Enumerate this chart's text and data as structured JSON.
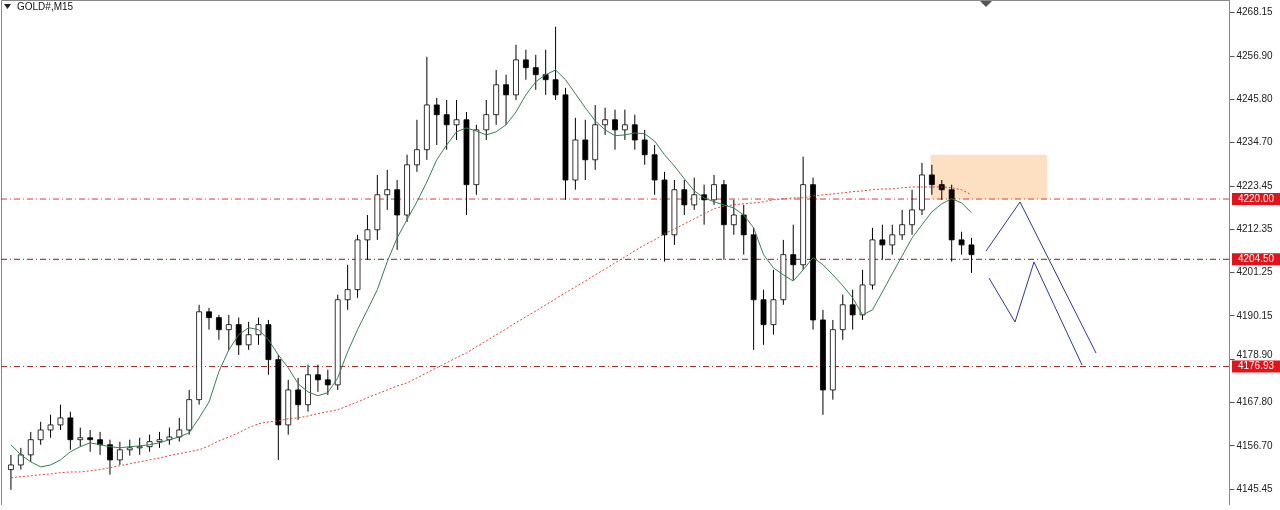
{
  "chart_data": {
    "type": "candlestick",
    "title": "GOLD#,M15",
    "color": "#000000",
    "categories": [
      null,
      null,
      null,
      null,
      null,
      null,
      null,
      null,
      null,
      null,
      null,
      null,
      null,
      null,
      null,
      null,
      null,
      null,
      null,
      null,
      null,
      null,
      null,
      null,
      null,
      null,
      null,
      null,
      null,
      null,
      null,
      null,
      null,
      null,
      null,
      null,
      null,
      null,
      null,
      null,
      null,
      null,
      null,
      null,
      null,
      null,
      null,
      null,
      null,
      null,
      null,
      null,
      null,
      null,
      null,
      null,
      null,
      null,
      null,
      null,
      null,
      null,
      null,
      null,
      null,
      null,
      null,
      null,
      null,
      null,
      null,
      null,
      null,
      null,
      null,
      null,
      null,
      null,
      null,
      null,
      null,
      null,
      null,
      null,
      null,
      null,
      null,
      null,
      null,
      null,
      null,
      null,
      null,
      null,
      null,
      null,
      null,
      null,
      null,
      null,
      null,
      null,
      null,
      null,
      null,
      null,
      null,
      null,
      null,
      null,
      null,
      null,
      null,
      null,
      null,
      null,
      null,
      null,
      null,
      null,
      null,
      null,
      null
    ],
    "ohlc": [
      [
        4150.4,
        4154.2,
        4145.2,
        4151.6
      ],
      [
        4151.6,
        4156.0,
        4150.4,
        4154.2
      ],
      [
        4154.2,
        4160.1,
        4152.4,
        4158.1
      ],
      [
        4158.1,
        4162.7,
        4156.8,
        4160.6
      ],
      [
        4160.6,
        4164.5,
        4158.6,
        4161.9
      ],
      [
        4161.9,
        4167.1,
        4160.6,
        4163.7
      ],
      [
        4163.7,
        4165.3,
        4155.5,
        4158.1
      ],
      [
        4158.1,
        4161.2,
        4156.3,
        4158.6
      ],
      [
        4158.6,
        4160.6,
        4155.0,
        4158.1
      ],
      [
        4158.1,
        4160.1,
        4154.2,
        4156.8
      ],
      [
        4156.8,
        4158.1,
        4149.1,
        4152.9
      ],
      [
        4152.9,
        4157.6,
        4151.6,
        4155.5
      ],
      [
        4155.5,
        4158.1,
        4154.0,
        4156.0
      ],
      [
        4156.0,
        4158.6,
        4154.2,
        4156.3
      ],
      [
        4156.3,
        4159.4,
        4155.0,
        4157.6
      ],
      [
        4157.6,
        4160.1,
        4156.0,
        4158.1
      ],
      [
        4158.1,
        4161.2,
        4156.8,
        4158.8
      ],
      [
        4158.8,
        4163.7,
        4157.6,
        4160.6
      ],
      [
        4160.6,
        4170.9,
        4159.4,
        4168.4
      ],
      [
        4168.4,
        4192.8,
        4167.1,
        4191.0
      ],
      [
        4191.0,
        4192.0,
        4186.4,
        4189.5
      ],
      [
        4189.5,
        4190.2,
        4183.8,
        4186.4
      ],
      [
        4186.4,
        4190.2,
        4181.2,
        4187.7
      ],
      [
        4187.7,
        4189.5,
        4179.9,
        4182.5
      ],
      [
        4182.5,
        4188.4,
        4181.2,
        4185.1
      ],
      [
        4185.1,
        4189.5,
        4182.5,
        4187.7
      ],
      [
        4187.7,
        4188.9,
        4174.8,
        4178.7
      ],
      [
        4178.7,
        4179.9,
        4152.9,
        4161.9
      ],
      [
        4161.9,
        4173.5,
        4159.4,
        4170.9
      ],
      [
        4170.9,
        4174.0,
        4163.2,
        4167.1
      ],
      [
        4167.1,
        4177.4,
        4165.3,
        4174.8
      ],
      [
        4174.8,
        4177.4,
        4170.4,
        4173.5
      ],
      [
        4173.5,
        4176.1,
        4169.6,
        4172.2
      ],
      [
        4172.2,
        4195.4,
        4170.9,
        4194.1
      ],
      [
        4194.1,
        4203.1,
        4191.5,
        4196.7
      ],
      [
        4196.7,
        4210.8,
        4194.6,
        4209.5
      ],
      [
        4209.5,
        4215.9,
        4204.4,
        4212.1
      ],
      [
        4212.1,
        4226.2,
        4209.5,
        4221.1
      ],
      [
        4221.1,
        4227.5,
        4217.2,
        4222.4
      ],
      [
        4222.4,
        4224.9,
        4206.9,
        4215.9
      ],
      [
        4215.9,
        4231.4,
        4214.1,
        4228.8
      ],
      [
        4228.8,
        4240.4,
        4227.0,
        4232.7
      ],
      [
        4232.7,
        4256.6,
        4230.1,
        4244.2
      ],
      [
        4244.2,
        4246.0,
        4233.9,
        4241.7
      ],
      [
        4241.7,
        4245.5,
        4232.7,
        4239.1
      ],
      [
        4239.1,
        4245.5,
        4235.2,
        4240.4
      ],
      [
        4240.4,
        4242.4,
        4215.9,
        4223.7
      ],
      [
        4223.7,
        4239.1,
        4221.1,
        4237.8
      ],
      [
        4237.8,
        4245.5,
        4235.2,
        4241.7
      ],
      [
        4241.7,
        4253.2,
        4239.1,
        4249.4
      ],
      [
        4249.4,
        4252.0,
        4239.1,
        4246.8
      ],
      [
        4246.8,
        4259.7,
        4245.5,
        4255.8
      ],
      [
        4255.8,
        4258.4,
        4250.7,
        4253.8
      ],
      [
        4253.8,
        4257.1,
        4248.1,
        4252.0
      ],
      [
        4252.0,
        4258.4,
        4246.8,
        4250.7
      ],
      [
        4250.7,
        4264.3,
        4245.5,
        4246.8
      ],
      [
        4246.8,
        4248.6,
        4219.8,
        4224.9
      ],
      [
        4224.9,
        4240.9,
        4222.4,
        4235.2
      ],
      [
        4235.2,
        4240.4,
        4224.9,
        4230.1
      ],
      [
        4230.1,
        4244.2,
        4227.5,
        4239.1
      ],
      [
        4239.1,
        4243.5,
        4236.5,
        4240.4
      ],
      [
        4240.4,
        4243.0,
        4232.7,
        4237.8
      ],
      [
        4237.8,
        4243.0,
        4235.2,
        4239.1
      ],
      [
        4239.1,
        4241.7,
        4232.7,
        4235.2
      ],
      [
        4235.2,
        4237.8,
        4228.8,
        4231.4
      ],
      [
        4231.4,
        4233.9,
        4221.1,
        4224.9
      ],
      [
        4224.9,
        4227.0,
        4203.9,
        4210.8
      ],
      [
        4210.8,
        4224.9,
        4208.2,
        4222.4
      ],
      [
        4222.4,
        4224.9,
        4215.9,
        4218.5
      ],
      [
        4218.5,
        4225.5,
        4217.2,
        4221.1
      ],
      [
        4221.1,
        4223.7,
        4213.4,
        4219.8
      ],
      [
        4219.8,
        4226.2,
        4218.5,
        4223.7
      ],
      [
        4223.7,
        4224.9,
        4204.4,
        4213.4
      ],
      [
        4213.4,
        4219.8,
        4210.8,
        4215.9
      ],
      [
        4215.9,
        4218.5,
        4205.7,
        4210.8
      ],
      [
        4210.8,
        4212.6,
        4181.2,
        4194.1
      ],
      [
        4194.1,
        4196.7,
        4182.5,
        4187.7
      ],
      [
        4187.7,
        4201.8,
        4185.1,
        4194.1
      ],
      [
        4194.1,
        4209.5,
        4192.8,
        4205.7
      ],
      [
        4205.7,
        4213.4,
        4199.2,
        4203.1
      ],
      [
        4203.1,
        4230.9,
        4201.8,
        4223.7
      ],
      [
        4223.7,
        4225.5,
        4186.4,
        4188.9
      ],
      [
        4188.9,
        4191.5,
        4164.5,
        4170.9
      ],
      [
        4170.9,
        4188.9,
        4168.4,
        4186.4
      ],
      [
        4186.4,
        4195.4,
        4183.8,
        4192.8
      ],
      [
        4192.8,
        4196.7,
        4186.4,
        4190.2
      ],
      [
        4190.2,
        4201.8,
        4188.9,
        4197.9
      ],
      [
        4197.9,
        4212.6,
        4196.7,
        4209.5
      ],
      [
        4209.5,
        4213.4,
        4204.4,
        4208.2
      ],
      [
        4208.2,
        4213.4,
        4205.7,
        4210.8
      ],
      [
        4210.8,
        4217.2,
        4209.5,
        4213.4
      ],
      [
        4213.4,
        4222.4,
        4210.8,
        4217.2
      ],
      [
        4217.2,
        4229.3,
        4215.9,
        4226.2
      ],
      [
        4226.2,
        4228.8,
        4221.1,
        4223.7
      ],
      [
        4223.7,
        4224.9,
        4219.8,
        4222.4
      ],
      [
        4222.4,
        4223.7,
        4203.9,
        4209.5
      ],
      [
        4209.5,
        4211.6,
        4205.7,
        4208.2
      ],
      [
        4208.2,
        4210.0,
        4201.0,
        4205.7
      ],
      null,
      null,
      null,
      null,
      null,
      null,
      null,
      null,
      null,
      null,
      null,
      null,
      null,
      null,
      null,
      null,
      null,
      null,
      null,
      null,
      null,
      null,
      null,
      null,
      null
    ],
    "series": [
      {
        "type": "line",
        "color": "#3a7d55",
        "line_style": "solid",
        "values": [
          4156.8,
          4154.2,
          4152.4,
          4151.1,
          4151.6,
          4152.9,
          4155.0,
          4156.3,
          4157.3,
          4156.8,
          4156.3,
          4156.0,
          4156.3,
          4156.5,
          4156.8,
          4157.3,
          4158.1,
          4158.8,
          4159.9,
          4163.7,
          4167.8,
          4175.6,
          4181.2,
          4185.1,
          4186.9,
          4186.4,
          4183.8,
          4179.9,
          4176.6,
          4172.5,
          4170.4,
          4169.4,
          4170.2,
          4174.0,
          4180.7,
          4186.4,
          4191.5,
          4196.7,
          4203.9,
          4210.0,
          4214.7,
          4219.3,
          4224.4,
          4230.1,
          4233.9,
          4237.3,
          4238.3,
          4237.5,
          4236.5,
          4237.3,
          4239.1,
          4242.4,
          4246.8,
          4250.2,
          4252.0,
          4253.2,
          4250.7,
          4247.1,
          4243.5,
          4240.1,
          4237.8,
          4236.3,
          4236.5,
          4237.0,
          4236.8,
          4234.9,
          4231.4,
          4228.5,
          4225.2,
          4222.1,
          4220.3,
          4219.3,
          4218.5,
          4217.7,
          4215.9,
          4212.6,
          4205.7,
          4202.3,
          4200.5,
          4198.9,
          4201.8,
          4204.9,
          4203.1,
          4200.5,
          4197.7,
          4194.6,
          4190.2,
          4191.5,
          4196.1,
          4200.8,
          4205.4,
          4210.0,
          4213.4,
          4216.7,
          4218.8,
          4220.1,
          4219.0,
          4216.5,
          null,
          null,
          null,
          null,
          null,
          null,
          null,
          null,
          null,
          null,
          null,
          null,
          null,
          null,
          null,
          null,
          null,
          null,
          null,
          null,
          null,
          null,
          null,
          null,
          null
        ]
      },
      {
        "type": "line",
        "color": "#d9463a",
        "line_style": "dotted",
        "values": [
          4148.3,
          4148.6,
          4148.8,
          4149.1,
          4149.3,
          4149.6,
          4149.8,
          4149.8,
          4150.1,
          4150.4,
          4150.9,
          4151.4,
          4151.9,
          4152.4,
          4152.9,
          4153.4,
          4154.0,
          4154.5,
          4155.0,
          4155.5,
          4156.5,
          4157.8,
          4158.8,
          4159.9,
          4161.2,
          4162.2,
          4162.7,
          4162.9,
          4163.5,
          4163.7,
          4164.2,
          4164.8,
          4165.3,
          4165.8,
          4166.8,
          4167.8,
          4168.9,
          4169.9,
          4170.9,
          4171.9,
          4172.7,
          4174.0,
          4175.3,
          4176.6,
          4177.9,
          4179.2,
          4180.4,
          4182.0,
          4183.5,
          4185.1,
          4186.6,
          4188.2,
          4189.7,
          4191.2,
          4192.8,
          4194.3,
          4195.9,
          4197.4,
          4198.9,
          4200.5,
          4202.0,
          4203.6,
          4205.1,
          4206.7,
          4208.2,
          4209.5,
          4211.1,
          4212.3,
          4213.6,
          4214.9,
          4216.2,
          4217.5,
          4218.2,
          4218.5,
          4218.8,
          4219.0,
          4219.3,
          4219.8,
          4220.1,
          4220.3,
          4220.3,
          4220.8,
          4221.1,
          4221.3,
          4221.6,
          4221.9,
          4222.1,
          4222.4,
          4222.6,
          4222.6,
          4222.9,
          4223.1,
          4223.1,
          4223.1,
          4223.1,
          4222.9,
          4222.4,
          4221.1,
          null,
          null,
          null,
          null,
          null,
          null,
          null,
          null,
          null,
          null,
          null,
          null,
          null,
          null,
          null,
          null,
          null,
          null,
          null,
          null,
          null,
          null,
          null,
          null,
          null
        ]
      }
    ],
    "ylim": [
      4141.3,
      4271.2
    ],
    "yticks": [
      4268.15,
      {
        "value": 4256.9,
        "label": "4256.90"
      },
      {
        "value": 4245.8,
        "label": "4245.80"
      },
      {
        "value": 4234.7,
        "label": "4234.70"
      },
      4223.45,
      4212.35,
      4201.25,
      4190.15,
      {
        "value": 4178.9,
        "label": "4178.90"
      },
      {
        "value": 4167.8,
        "label": "4167.80"
      },
      {
        "value": 4156.7,
        "label": "4156.70"
      },
      4145.45
    ],
    "ref_lines": [
      {
        "axis": "y",
        "value": 4220.0,
        "label": "4220.00",
        "color": "#d23c3c",
        "line_style": "dashed"
      },
      {
        "axis": "y",
        "value": 4204.5,
        "label": "4204.50",
        "color": "#8a1c1c",
        "line_style": "dashed"
      },
      {
        "axis": "y",
        "value": 4176.93,
        "label": "4176.93",
        "color": "#a33030",
        "line_style": "dashed"
      }
    ],
    "bands": [
      {
        "axis": "y",
        "from": 4220.0,
        "to": 4231.4,
        "color": "#fde0c2"
      }
    ]
  }
}
